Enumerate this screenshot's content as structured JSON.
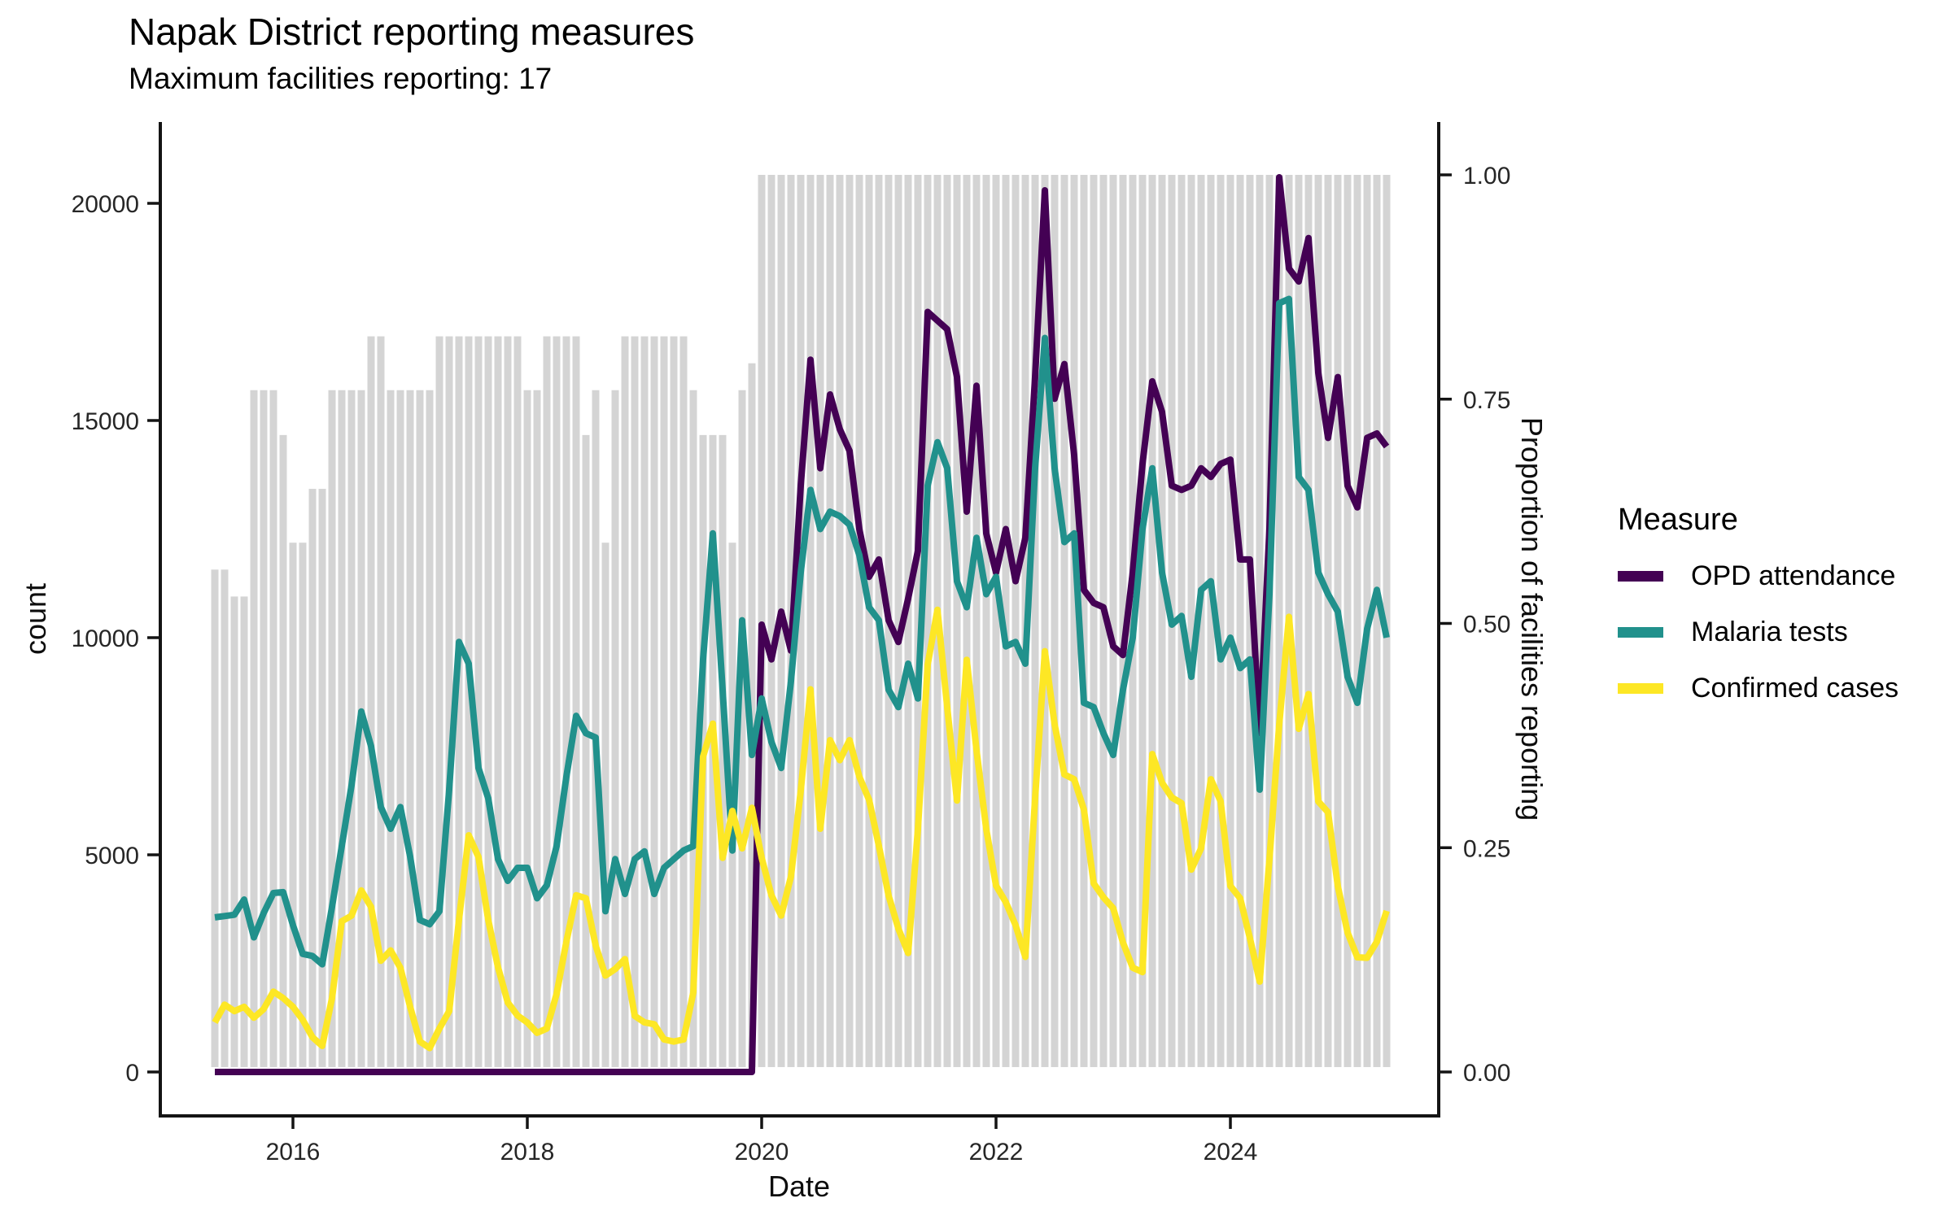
{
  "title": "Napak District reporting measures",
  "subtitle": "Maximum facilities reporting: 17",
  "legend": {
    "title": "Measure",
    "position": "right"
  },
  "chart_data": {
    "type": "bar+line",
    "x_label": "Date",
    "y_left_label": "count",
    "y_right_label": "Proportion of facilities reporting",
    "y_left_range": [
      0,
      20650
    ],
    "y_right_range": [
      0,
      1.0
    ],
    "grid": false,
    "legend_position": "right",
    "x_ticks": [
      {
        "year": 2016,
        "label": "2016"
      },
      {
        "year": 2018,
        "label": "2018"
      },
      {
        "year": 2020,
        "label": "2020"
      },
      {
        "year": 2022,
        "label": "2022"
      },
      {
        "year": 2024,
        "label": "2024"
      }
    ],
    "y_left_ticks": [
      {
        "v": 0,
        "label": "0"
      },
      {
        "v": 5000,
        "label": "5000"
      },
      {
        "v": 10000,
        "label": "10000"
      },
      {
        "v": 15000,
        "label": "15000"
      },
      {
        "v": 20000,
        "label": "20000"
      }
    ],
    "y_right_ticks": [
      {
        "v": 0.0,
        "label": "0.00"
      },
      {
        "v": 0.25,
        "label": "0.25"
      },
      {
        "v": 0.5,
        "label": "0.50"
      },
      {
        "v": 0.75,
        "label": "0.75"
      },
      {
        "v": 1.0,
        "label": "1.00"
      }
    ],
    "months": [
      "2015-05",
      "2015-06",
      "2015-07",
      "2015-08",
      "2015-09",
      "2015-10",
      "2015-11",
      "2015-12",
      "2016-01",
      "2016-02",
      "2016-03",
      "2016-04",
      "2016-05",
      "2016-06",
      "2016-07",
      "2016-08",
      "2016-09",
      "2016-10",
      "2016-11",
      "2016-12",
      "2017-01",
      "2017-02",
      "2017-03",
      "2017-04",
      "2017-05",
      "2017-06",
      "2017-07",
      "2017-08",
      "2017-09",
      "2017-10",
      "2017-11",
      "2017-12",
      "2018-01",
      "2018-02",
      "2018-03",
      "2018-04",
      "2018-05",
      "2018-06",
      "2018-07",
      "2018-08",
      "2018-09",
      "2018-10",
      "2018-11",
      "2018-12",
      "2019-01",
      "2019-02",
      "2019-03",
      "2019-04",
      "2019-05",
      "2019-06",
      "2019-07",
      "2019-08",
      "2019-09",
      "2019-10",
      "2019-11",
      "2019-12",
      "2020-01",
      "2020-02",
      "2020-03",
      "2020-04",
      "2020-05",
      "2020-06",
      "2020-07",
      "2020-08",
      "2020-09",
      "2020-10",
      "2020-11",
      "2020-12",
      "2021-01",
      "2021-02",
      "2021-03",
      "2021-04",
      "2021-05",
      "2021-06",
      "2021-07",
      "2021-08",
      "2021-09",
      "2021-10",
      "2021-11",
      "2021-12",
      "2022-01",
      "2022-02",
      "2022-03",
      "2022-04",
      "2022-05",
      "2022-06",
      "2022-07",
      "2022-08",
      "2022-09",
      "2022-10",
      "2022-11",
      "2022-12",
      "2023-01",
      "2023-02",
      "2023-03",
      "2023-04",
      "2023-05",
      "2023-06",
      "2023-07",
      "2023-08",
      "2023-09",
      "2023-10",
      "2023-11",
      "2023-12",
      "2024-01",
      "2024-02",
      "2024-03",
      "2024-04",
      "2024-05",
      "2024-06",
      "2024-07",
      "2024-08",
      "2024-09",
      "2024-10",
      "2024-11",
      "2024-12",
      "2025-01",
      "2025-02",
      "2025-03",
      "2025-04",
      "2025-05"
    ],
    "bars": {
      "name": "Proportion of facilities reporting",
      "axis": "right",
      "color": "#d4d4d4",
      "values": [
        0.56,
        0.56,
        0.53,
        0.53,
        0.76,
        0.76,
        0.76,
        0.71,
        0.59,
        0.59,
        0.65,
        0.65,
        0.76,
        0.76,
        0.76,
        0.76,
        0.82,
        0.82,
        0.76,
        0.76,
        0.76,
        0.76,
        0.76,
        0.82,
        0.82,
        0.82,
        0.82,
        0.82,
        0.82,
        0.82,
        0.82,
        0.82,
        0.76,
        0.76,
        0.82,
        0.82,
        0.82,
        0.82,
        0.71,
        0.76,
        0.59,
        0.76,
        0.82,
        0.82,
        0.82,
        0.82,
        0.82,
        0.82,
        0.82,
        0.76,
        0.71,
        0.71,
        0.71,
        0.59,
        0.76,
        0.79,
        1,
        1,
        1,
        1,
        1,
        1,
        1,
        1,
        1,
        1,
        1,
        1,
        1,
        1,
        1,
        1,
        1,
        1,
        1,
        1,
        1,
        1,
        1,
        1,
        1,
        1,
        1,
        1,
        1,
        1,
        1,
        1,
        1,
        1,
        1,
        1,
        1,
        1,
        1,
        1,
        1,
        1,
        1,
        1,
        1,
        1,
        1,
        1,
        1,
        1,
        1,
        1,
        1,
        1,
        1,
        1,
        1,
        1,
        1,
        1,
        1,
        1,
        1,
        1,
        1
      ]
    },
    "series": [
      {
        "name": "OPD attendance",
        "color": "#440154",
        "axis": "left",
        "values": [
          0,
          0,
          0,
          0,
          0,
          0,
          0,
          0,
          0,
          0,
          0,
          0,
          0,
          0,
          0,
          0,
          0,
          0,
          0,
          0,
          0,
          0,
          0,
          0,
          0,
          0,
          0,
          0,
          0,
          0,
          0,
          0,
          0,
          0,
          0,
          0,
          0,
          0,
          0,
          0,
          0,
          0,
          0,
          0,
          0,
          0,
          0,
          0,
          0,
          0,
          0,
          0,
          0,
          0,
          0,
          0,
          10300,
          9500,
          10600,
          9700,
          13500,
          16400,
          13900,
          15600,
          14800,
          14300,
          12500,
          11400,
          11800,
          10400,
          9900,
          10900,
          12000,
          17500,
          17300,
          17100,
          16000,
          12900,
          15800,
          12400,
          11500,
          12500,
          11300,
          12300,
          16000,
          20300,
          15500,
          16300,
          14200,
          11100,
          10800,
          10700,
          9800,
          9600,
          11500,
          14000,
          15900,
          15200,
          13500,
          13400,
          13500,
          13900,
          13700,
          14000,
          14100,
          11800,
          11800,
          7800,
          12500,
          20600,
          18500,
          18200,
          19200,
          16100,
          14600,
          16000,
          13500,
          13000,
          14600,
          14700,
          14400
        ]
      },
      {
        "name": "Malaria tests",
        "color": "#21918c",
        "axis": "left",
        "values": [
          3560,
          3590,
          3620,
          3970,
          3100,
          3660,
          4120,
          4140,
          3380,
          2720,
          2670,
          2480,
          3800,
          5200,
          6600,
          8300,
          7500,
          6100,
          5600,
          6100,
          4960,
          3500,
          3400,
          3700,
          6500,
          9900,
          9400,
          7000,
          6300,
          4900,
          4400,
          4700,
          4700,
          4000,
          4300,
          5200,
          6800,
          8200,
          7800,
          7700,
          3700,
          4900,
          4100,
          4900,
          5080,
          4100,
          4700,
          4900,
          5100,
          5200,
          9500,
          12400,
          8800,
          5100,
          10400,
          7300,
          8600,
          7600,
          7000,
          9000,
          11500,
          13400,
          12500,
          12900,
          12800,
          12600,
          11900,
          10700,
          10400,
          8800,
          8400,
          9400,
          8600,
          13500,
          14500,
          13900,
          11300,
          10700,
          12300,
          11000,
          11400,
          9800,
          9900,
          9400,
          13900,
          16900,
          13900,
          12200,
          12400,
          8500,
          8400,
          7800,
          7300,
          8800,
          10000,
          12500,
          13900,
          11500,
          10300,
          10500,
          9100,
          11100,
          11300,
          9500,
          10000,
          9300,
          9500,
          6500,
          11000,
          17700,
          17800,
          13700,
          13400,
          11500,
          11000,
          10600,
          9100,
          8500,
          10200,
          11100,
          10000
        ]
      },
      {
        "name": "Confirmed cases",
        "color": "#fde725",
        "axis": "left",
        "values": [
          1140,
          1550,
          1400,
          1500,
          1250,
          1450,
          1850,
          1700,
          1500,
          1200,
          800,
          600,
          1700,
          3470,
          3600,
          4180,
          3800,
          2560,
          2800,
          2400,
          1500,
          700,
          550,
          1000,
          1400,
          3500,
          5450,
          4950,
          3500,
          2410,
          1600,
          1300,
          1140,
          900,
          1000,
          1800,
          3000,
          4070,
          4000,
          2910,
          2220,
          2370,
          2600,
          1290,
          1140,
          1100,
          750,
          700,
          750,
          1830,
          7260,
          8020,
          4930,
          6010,
          5150,
          6080,
          4930,
          4070,
          3600,
          4500,
          6470,
          8810,
          5600,
          7640,
          7180,
          7640,
          6800,
          6265,
          5210,
          4060,
          3300,
          2740,
          5590,
          9380,
          10640,
          8400,
          6250,
          9490,
          7410,
          5590,
          4290,
          3910,
          3380,
          2650,
          6300,
          9690,
          8000,
          6850,
          6740,
          6040,
          4340,
          4020,
          3770,
          2980,
          2400,
          2300,
          7320,
          6660,
          6320,
          6190,
          4660,
          5150,
          6740,
          6230,
          4280,
          4000,
          3080,
          2080,
          4900,
          8000,
          10480,
          7900,
          8700,
          6230,
          5980,
          4280,
          3210,
          2640,
          2630,
          3000,
          3710
        ]
      }
    ]
  }
}
